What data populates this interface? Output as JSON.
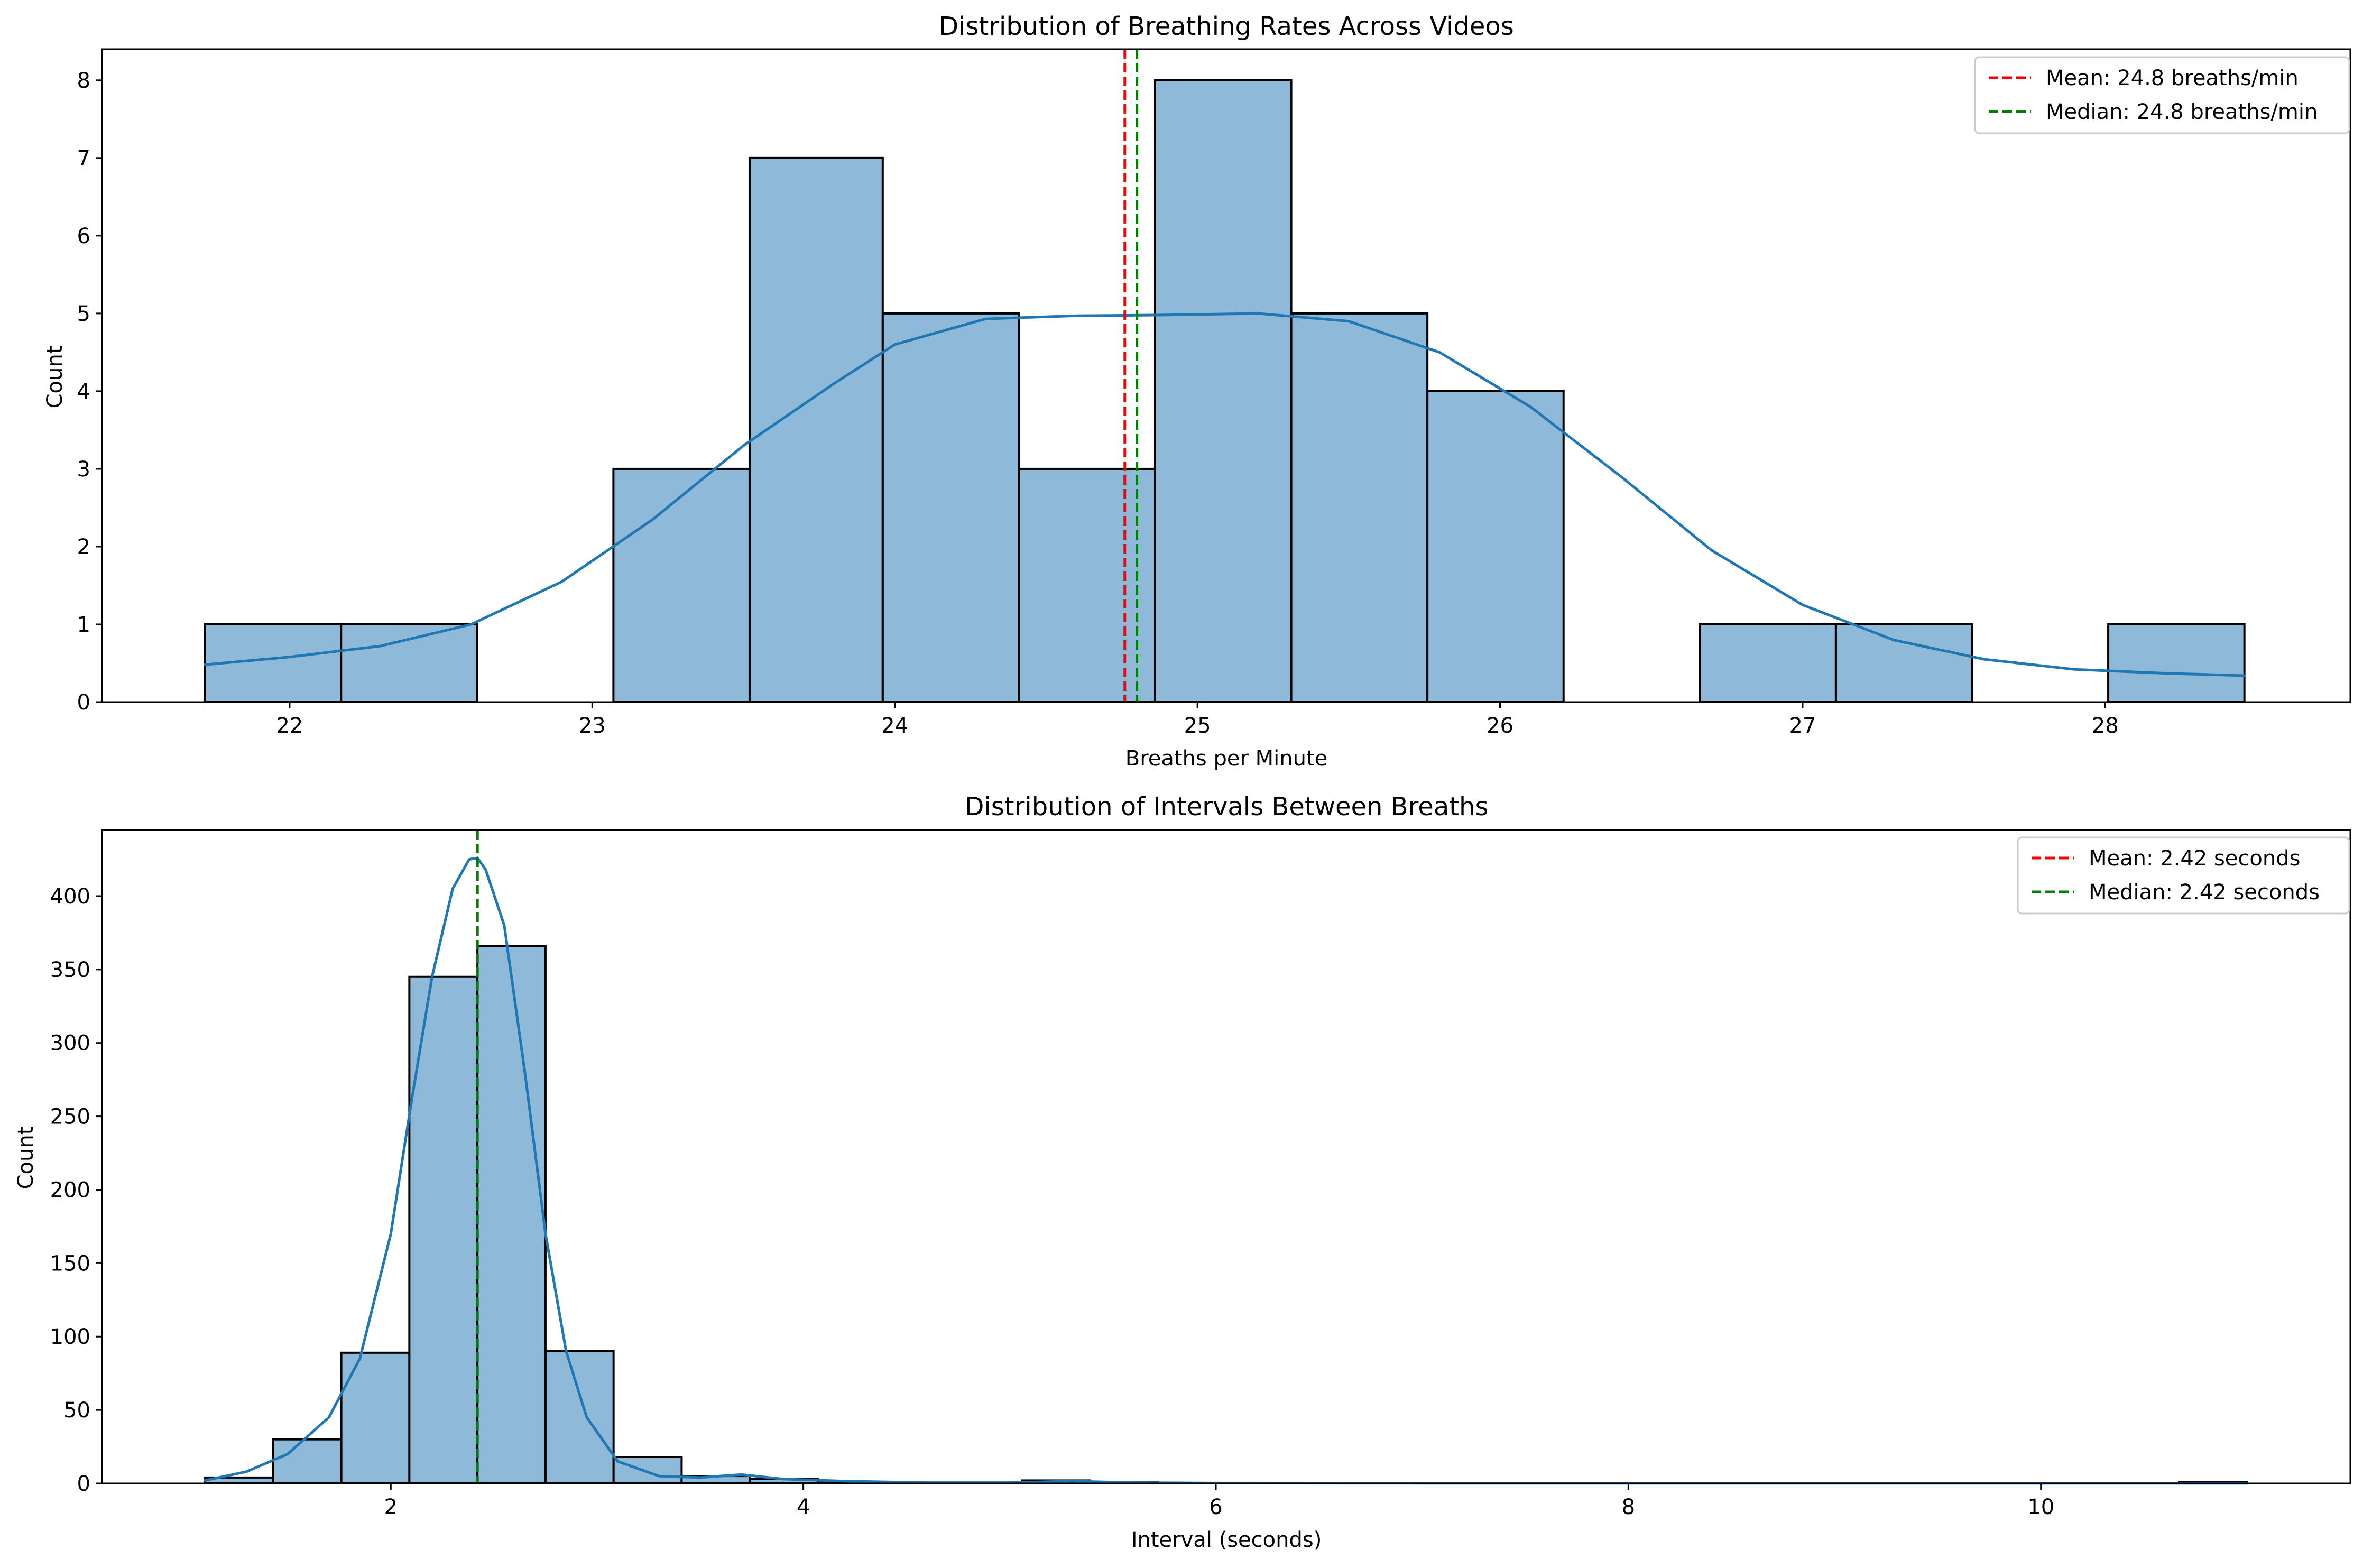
{
  "colors": {
    "bar_fill": "#8fb9d9",
    "bar_edge": "#000000",
    "kde_line": "#1f77b4",
    "mean_line": "#ff0000",
    "median_line": "#008000",
    "background": "#ffffff"
  },
  "chart_data": [
    {
      "type": "bar",
      "title": "Distribution of Breathing Rates Across Videos",
      "xlabel": "Breaths per Minute",
      "ylabel": "Count",
      "xlim": [
        21.38,
        28.81
      ],
      "ylim": [
        0,
        8.4
      ],
      "xticks": [
        22,
        23,
        24,
        25,
        26,
        27,
        28
      ],
      "xtick_labels": [
        "22",
        "23",
        "24",
        "25",
        "26",
        "27",
        "28"
      ],
      "yticks": [
        0,
        1,
        2,
        3,
        4,
        5,
        6,
        7,
        8
      ],
      "ytick_labels": [
        "0",
        "1",
        "2",
        "3",
        "4",
        "5",
        "6",
        "7",
        "8"
      ],
      "bin_edges": [
        21.72,
        22.17,
        22.62,
        23.07,
        23.52,
        23.96,
        24.41,
        24.86,
        25.31,
        25.76,
        26.21,
        26.66,
        27.11,
        27.56,
        28.01,
        28.46
      ],
      "values": [
        1,
        1,
        0,
        3,
        7,
        5,
        3,
        8,
        5,
        4,
        0,
        1,
        1,
        0,
        1
      ],
      "kde": {
        "x": [
          21.72,
          22.0,
          22.3,
          22.6,
          22.9,
          23.2,
          23.5,
          23.8,
          24.0,
          24.3,
          24.6,
          24.9,
          25.2,
          25.5,
          25.8,
          26.1,
          26.4,
          26.7,
          27.0,
          27.3,
          27.6,
          27.9,
          28.2,
          28.46
        ],
        "y": [
          0.48,
          0.58,
          0.72,
          1.0,
          1.55,
          2.35,
          3.3,
          4.1,
          4.6,
          4.93,
          4.97,
          4.98,
          5.0,
          4.9,
          4.5,
          3.8,
          2.9,
          1.95,
          1.25,
          0.8,
          0.55,
          0.42,
          0.37,
          0.34
        ]
      },
      "vlines": [
        {
          "name": "mean",
          "x": 24.76,
          "color": "#ff0000"
        },
        {
          "name": "median",
          "x": 24.8,
          "color": "#008000"
        }
      ],
      "legend": {
        "placement": "top-right",
        "entries": [
          "Mean: 24.8 breaths/min",
          "Median: 24.8 breaths/min"
        ]
      }
    },
    {
      "type": "bar",
      "title": "Distribution of Intervals Between Breaths",
      "xlabel": "Interval (seconds)",
      "ylabel": "Count",
      "xlim": [
        0.6,
        11.5
      ],
      "ylim": [
        0,
        445
      ],
      "xticks": [
        2,
        4,
        6,
        8,
        10
      ],
      "xtick_labels": [
        "2",
        "4",
        "6",
        "8",
        "10"
      ],
      "yticks": [
        0,
        50,
        100,
        150,
        200,
        250,
        300,
        350,
        400
      ],
      "ytick_labels": [
        "0",
        "50",
        "100",
        "150",
        "200",
        "250",
        "300",
        "350",
        "400"
      ],
      "bin_edges": [
        1.1,
        1.43,
        1.76,
        2.09,
        2.42,
        2.75,
        3.08,
        3.41,
        3.74,
        4.07,
        4.4,
        4.73,
        5.06,
        5.39,
        5.72,
        6.05,
        6.38,
        6.71,
        7.04,
        7.37,
        7.7,
        8.03,
        8.36,
        8.69,
        9.02,
        9.35,
        9.68,
        10.01,
        10.34,
        10.67,
        11.0
      ],
      "values": [
        4,
        30,
        89,
        345,
        366,
        90,
        18,
        5,
        3,
        1,
        0,
        0,
        2,
        1,
        0,
        0,
        0,
        0,
        0,
        0,
        0,
        0,
        0,
        0,
        0,
        0,
        0,
        0,
        0,
        1
      ],
      "kde": {
        "x": [
          1.1,
          1.3,
          1.5,
          1.7,
          1.85,
          2.0,
          2.1,
          2.2,
          2.3,
          2.38,
          2.42,
          2.46,
          2.55,
          2.65,
          2.75,
          2.85,
          2.95,
          3.1,
          3.3,
          3.5,
          3.7,
          3.9,
          4.2,
          4.6,
          5.0,
          5.3,
          5.6,
          6.0,
          7.0,
          8.0,
          9.0,
          10.0,
          11.0
        ],
        "y": [
          2,
          8,
          20,
          45,
          85,
          170,
          260,
          345,
          405,
          425,
          426,
          418,
          380,
          280,
          170,
          90,
          45,
          15,
          5,
          4,
          6,
          3,
          1.5,
          0.5,
          0.5,
          1.5,
          0.5,
          0.2,
          0.1,
          0.1,
          0.1,
          0.1,
          0.1
        ]
      },
      "vlines": [
        {
          "name": "mean",
          "x": 2.42,
          "color": "#ff0000"
        },
        {
          "name": "median",
          "x": 2.42,
          "color": "#008000"
        }
      ],
      "legend": {
        "placement": "top-right",
        "entries": [
          "Mean: 2.42 seconds",
          "Median: 2.42 seconds"
        ]
      }
    }
  ]
}
